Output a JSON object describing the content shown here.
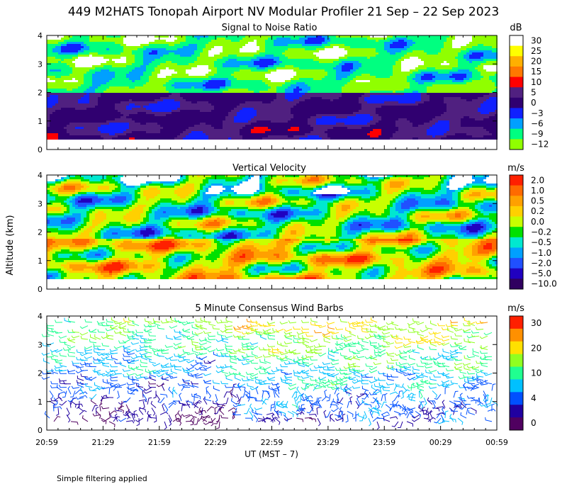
{
  "page_title": "449 M2HATS Tonopah Airport NV Modular Profiler 21 Sep – 22 Sep 2023",
  "y_axis_label": "Altitude (km)",
  "x_axis_label": "UT  (MST – 7)",
  "footer_note": "Simple filtering applied",
  "chart_data": [
    {
      "type": "heatmap",
      "title": "Signal to Noise Ratio",
      "xlabel": "UT  (MST – 7)",
      "ylabel": "Altitude (km)",
      "x_ticks": [
        "20:59",
        "21:29",
        "21:59",
        "22:29",
        "22:59",
        "23:29",
        "23:59",
        "00:29",
        "00:59"
      ],
      "y_ticks": [
        "0",
        "1",
        "2",
        "3",
        "4"
      ],
      "ylim": [
        0,
        4
      ],
      "colorbar": {
        "unit": "dB",
        "levels": [
          "30",
          "25",
          "20",
          "15",
          "10",
          "5",
          "0",
          "−3",
          "−6",
          "−9",
          "−12"
        ],
        "colors": [
          "#ffffff",
          "#ffff00",
          "#ffb000",
          "#ff7800",
          "#ff0000",
          "#502080",
          "#300070",
          "#1020ff",
          "#00a0ff",
          "#00ff80",
          "#90ff00"
        ]
      },
      "summary": "Low SNR layer (0 to 5 dB) between 0.3 and 2 km across the period, weak 10 dB cells near 0.7 km; mostly −9 to −12 dB above 2 km with white no-data gaps"
    },
    {
      "type": "heatmap",
      "title": "Vertical Velocity",
      "xlabel": "UT  (MST – 7)",
      "ylabel": "Altitude (km)",
      "x_ticks": [
        "20:59",
        "21:29",
        "21:59",
        "22:29",
        "22:59",
        "23:29",
        "23:59",
        "00:29",
        "00:59"
      ],
      "y_ticks": [
        "0",
        "1",
        "2",
        "3",
        "4"
      ],
      "ylim": [
        0,
        4
      ],
      "colorbar": {
        "unit": "m/s",
        "levels": [
          "2.0",
          "1.0",
          "0.5",
          "0.2",
          "0.0",
          "−0.2",
          "−0.5",
          "−1.0",
          "−2.0",
          "−5.0",
          "−10.0"
        ],
        "colors": [
          "#ff2000",
          "#ff6a00",
          "#ffa000",
          "#ffd000",
          "#c8ff00",
          "#00e000",
          "#00e8d0",
          "#00a0ff",
          "#2050ff",
          "#2000c0",
          "#300060"
        ]
      },
      "summary": "Mixed updrafts and downdrafts between 0.3 and 4 km; updrafts of 0.5 to 1 m/s mostly below 2 km, downdrafts of −0.5 to −1 m/s aloft"
    },
    {
      "type": "scatter",
      "title": "5 Minute Consensus Wind Barbs",
      "xlabel": "UT  (MST – 7)",
      "ylabel": "Altitude (km)",
      "x_ticks": [
        "20:59",
        "21:29",
        "21:59",
        "22:29",
        "22:59",
        "23:29",
        "23:59",
        "00:29",
        "00:59"
      ],
      "y_ticks": [
        "0",
        "1",
        "2",
        "3",
        "4"
      ],
      "ylim": [
        0,
        4
      ],
      "colorbar": {
        "unit": "m/s",
        "levels": [
          "30",
          "20",
          "10",
          "4",
          "0"
        ],
        "colors": [
          "#ff2000",
          "#ff9000",
          "#ffe000",
          "#90ff20",
          "#20ff90",
          "#00c0ff",
          "#0050ff",
          "#2000a0",
          "#500060"
        ]
      },
      "summary": "Winds 0 to 4 m/s below 1.5 km, increasing with height to 10 to 20 m/s near 3.5 km"
    }
  ]
}
